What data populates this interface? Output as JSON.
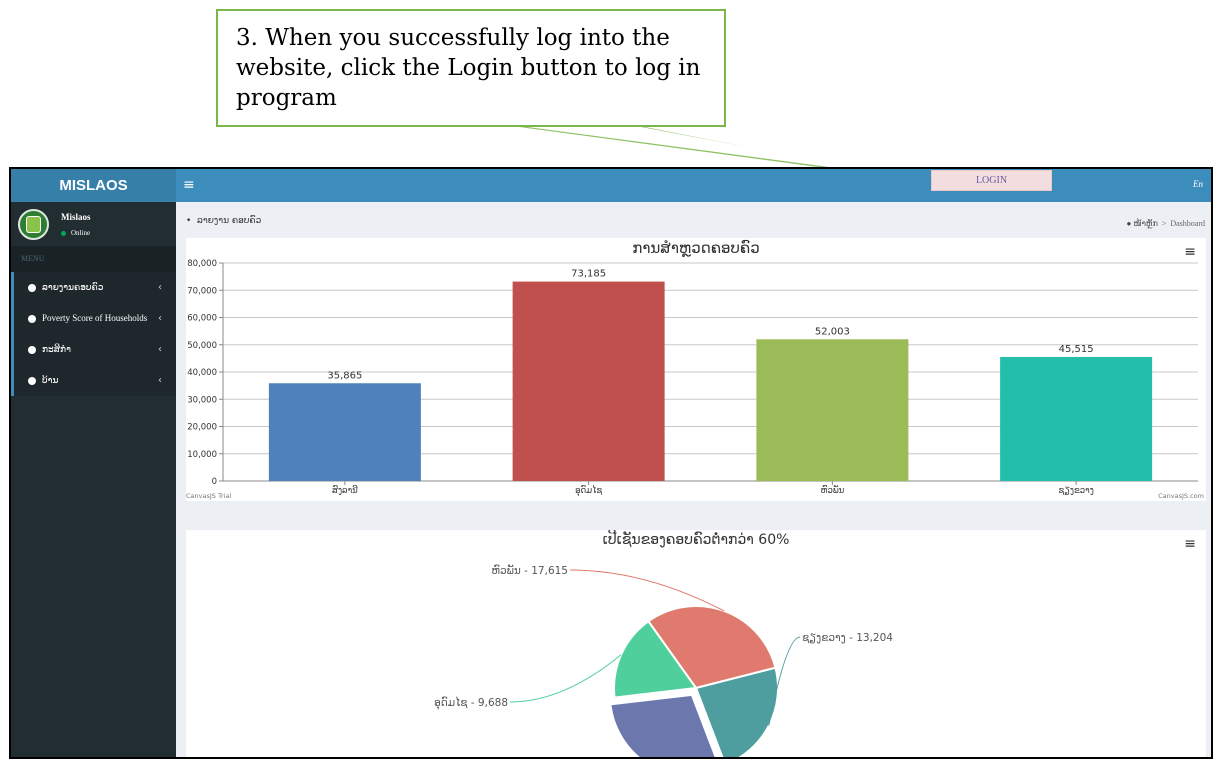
{
  "callout": {
    "line1": "3. When you successfully log into the",
    "line2": "website, click the Login button to log in",
    "line3": "program"
  },
  "header": {
    "logo": "MISLAOS",
    "hamburger": "≡",
    "login_label": "LOGIN",
    "lang": "En"
  },
  "sidebar": {
    "user_name": "Mislaos",
    "user_status": "Online",
    "menu_header": "MENU",
    "items": [
      {
        "label": "ລາຍງານຄອບຄົວ",
        "chevron": "‹"
      },
      {
        "label": "Poverty Score of Households",
        "chevron": "‹"
      },
      {
        "label": "ກະສິກຳ",
        "chevron": "‹"
      },
      {
        "label": "ບ້ານ",
        "chevron": "‹"
      }
    ]
  },
  "breadcrumb": {
    "left": "ລາຍງານ ຄອບຄົວ",
    "home": "ໜ້າຫຼັກ",
    "separator": ">",
    "current": "Dashboard"
  },
  "bar_chart_menu": "≡",
  "pie_chart_menu": "≡",
  "chart_data": [
    {
      "type": "bar",
      "title": "ການສຳຫຼວດຄອບຄົວ",
      "categories": [
        "ສົງລານີ",
        "ອຸດົມໄຊ",
        "ຫົວພັນ",
        "ຊຽງຂວາງ"
      ],
      "values": [
        35865,
        73185,
        52003,
        45515
      ],
      "value_labels": [
        "35,865",
        "73,185",
        "52,003",
        "45,515"
      ],
      "colors": [
        "#4f81bd",
        "#c0504d",
        "#9bbb59",
        "#23bfaa"
      ],
      "ylim": [
        0,
        80000
      ],
      "yticks": [
        "0",
        "10,000",
        "20,000",
        "30,000",
        "40,000",
        "50,000",
        "60,000",
        "70,000",
        "80,000"
      ],
      "grid": true,
      "watermark_left": "CanvasJS Trial",
      "watermark_right": "CanvasJS.com"
    },
    {
      "type": "pie",
      "title": "ເປີເຊັນຂອງຄອບຄົວຕ່ຳກວ່າ 60%",
      "slices": [
        {
          "label": "ຫົວພັນ",
          "value": 17615,
          "text": "ຫົວພັນ - 17,615",
          "color": "#e07a6e"
        },
        {
          "label": "ຊຽງຂວາງ",
          "value": 13204,
          "text": "ຊຽງຂວາງ - 13,204",
          "color": "#4f9e9f"
        },
        {
          "label": "",
          "value": 16500,
          "text": "",
          "color": "#6c77ae"
        },
        {
          "label": "ອຸດົມໄຊ",
          "value": 9688,
          "text": "ອຸດົມໄຊ - 9,688",
          "color": "#4fcf9c"
        }
      ]
    }
  ]
}
